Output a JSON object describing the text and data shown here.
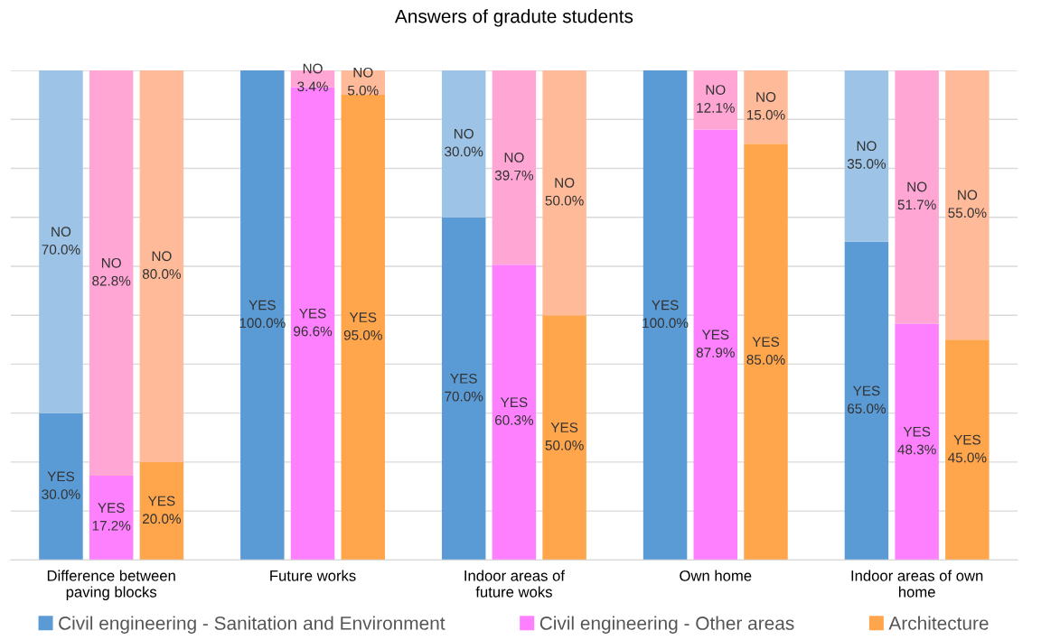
{
  "chart_data": {
    "type": "bar",
    "title": "Answers of gradute students",
    "categories": [
      null,
      "Difference between\npaving blocks",
      null,
      null,
      null,
      "Future works",
      null,
      null,
      null,
      "Indoor areas of\nfuture woks",
      null,
      null,
      null,
      "Own home",
      null,
      null,
      null,
      "Indoor areas of own\nhome",
      null
    ],
    "stacked": true,
    "series": [
      {
        "name": "Civil engineering - Sanitation and Environment",
        "color": "#5b9bd5",
        "values": [
          30.0,
          null,
          null,
          null,
          100.0,
          null,
          null,
          null,
          70.0,
          null,
          null,
          null,
          100.0,
          null,
          null,
          null,
          65.0,
          null,
          null
        ],
        "value_labels": [
          "YES\n30.0%",
          null,
          null,
          null,
          "YES\n100.0%",
          null,
          null,
          null,
          "YES\n70.0%",
          null,
          null,
          null,
          "YES\n100.0%",
          null,
          null,
          null,
          "YES\n65.0%",
          null,
          null
        ]
      },
      {
        "name": "Civil engineering - Other areas",
        "color": "#ff80ff",
        "values": [
          null,
          17.2,
          null,
          null,
          null,
          96.6,
          null,
          null,
          null,
          60.3,
          null,
          null,
          null,
          87.9,
          null,
          null,
          null,
          48.3,
          null
        ],
        "value_labels": [
          null,
          "YES\n17.2%",
          null,
          null,
          null,
          "YES\n96.6%",
          null,
          null,
          null,
          "YES\n60.3%",
          null,
          null,
          null,
          "YES\n87.9%",
          null,
          null,
          null,
          "YES\n48.3%",
          null
        ]
      },
      {
        "name": "Architecture",
        "color": "#ffa54c",
        "values": [
          null,
          null,
          20.0,
          null,
          null,
          null,
          95.0,
          null,
          null,
          null,
          50.0,
          null,
          null,
          null,
          85.0,
          null,
          null,
          null,
          45.0
        ],
        "value_labels": [
          null,
          null,
          "YES\n20.0%",
          null,
          null,
          null,
          "YES\n95.0%",
          null,
          null,
          null,
          "YES\n50.0%",
          null,
          null,
          null,
          "YES\n85.0%",
          null,
          null,
          null,
          "YES\n45.0%"
        ]
      },
      {
        "color": "#9dc3e6",
        "values": [
          70.0,
          null,
          null,
          null,
          0.0,
          null,
          null,
          null,
          30.0,
          null,
          null,
          null,
          0.0,
          null,
          null,
          null,
          35.0,
          null,
          null
        ],
        "value_labels": [
          "NO\n70.0%",
          null,
          null,
          null,
          null,
          null,
          null,
          null,
          "NO\n30.0%",
          null,
          null,
          null,
          null,
          null,
          null,
          null,
          "NO\n35.0%",
          null,
          null
        ]
      },
      {
        "color": "#ffa6d5",
        "values": [
          null,
          82.8,
          null,
          null,
          null,
          3.4,
          null,
          null,
          null,
          39.7,
          null,
          null,
          null,
          12.1,
          null,
          null,
          null,
          51.7,
          null
        ],
        "value_labels": [
          null,
          "NO\n82.8%",
          null,
          null,
          null,
          "NO\n3.4%",
          null,
          null,
          null,
          "NO\n39.7%",
          null,
          null,
          null,
          "NO\n12.1%",
          null,
          null,
          null,
          "NO\n51.7%",
          null
        ]
      },
      {
        "color": "#ffbb99",
        "values": [
          null,
          null,
          80.0,
          null,
          null,
          null,
          5.0,
          null,
          null,
          null,
          50.0,
          null,
          null,
          null,
          15.0,
          null,
          null,
          null,
          55.0
        ],
        "value_labels": [
          null,
          null,
          "NO\n80.0%",
          null,
          null,
          null,
          "NO\n5.0%",
          null,
          null,
          null,
          "NO\n50.0%",
          null,
          null,
          null,
          "NO\n15.0%",
          null,
          null,
          null,
          "NO\n55.0%"
        ]
      }
    ],
    "ylim": [
      0,
      100
    ],
    "yticks": [
      {
        "value": 0,
        "label": null
      },
      {
        "value": 10,
        "label": null
      },
      {
        "value": 20,
        "label": null
      },
      {
        "value": 30,
        "label": null
      },
      {
        "value": 40,
        "label": null
      },
      {
        "value": 50,
        "label": null
      },
      {
        "value": 60,
        "label": null
      },
      {
        "value": 70,
        "label": null
      },
      {
        "value": 80,
        "label": null
      },
      {
        "value": 90,
        "label": null
      },
      {
        "value": 100,
        "label": null
      }
    ],
    "tick_labels": "x",
    "grid": "y",
    "legend": "bottom"
  }
}
